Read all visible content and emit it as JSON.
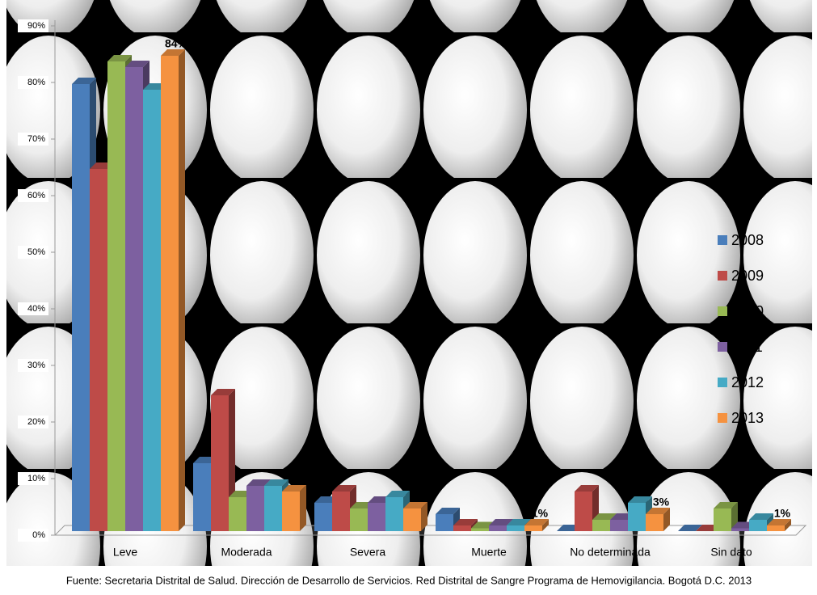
{
  "chart_data": {
    "type": "bar3d",
    "categories": [
      "Leve",
      "Moderada",
      "Severa",
      "Muerte",
      "No determinada",
      "Sin dato"
    ],
    "series": [
      {
        "name": "2008",
        "color": "#4a7ebb",
        "values": [
          79,
          12,
          5,
          3,
          0,
          0
        ]
      },
      {
        "name": "2009",
        "color": "#be4b48",
        "values": [
          64,
          24,
          7,
          1,
          7,
          0
        ]
      },
      {
        "name": "2010",
        "color": "#98b954",
        "values": [
          83,
          6,
          4,
          0.5,
          2,
          4
        ]
      },
      {
        "name": "2011",
        "color": "#7d60a0",
        "values": [
          82,
          8,
          5,
          1,
          2,
          0.5
        ]
      },
      {
        "name": "2012",
        "color": "#46aac5",
        "values": [
          78,
          8,
          6,
          1,
          5,
          2
        ]
      },
      {
        "name": "2013",
        "color": "#f59240",
        "values": [
          84,
          7,
          4,
          1,
          3,
          1
        ],
        "value_labels": [
          "84%",
          null,
          null,
          "1%",
          "3%",
          "1%"
        ]
      }
    ],
    "ylim": [
      0,
      90
    ],
    "yticks": [
      {
        "value": 0,
        "label": "0%"
      },
      {
        "value": 10,
        "label": "10%"
      },
      {
        "value": 20,
        "label": "20%"
      },
      {
        "value": 30,
        "label": "30%"
      },
      {
        "value": 40,
        "label": "40%"
      },
      {
        "value": 50,
        "label": "50%"
      },
      {
        "value": 60,
        "label": "60%"
      },
      {
        "value": 70,
        "label": "70%"
      },
      {
        "value": 80,
        "label": "80%"
      },
      {
        "value": 90,
        "label": "90%"
      }
    ],
    "legend": "right",
    "source": "Fuente: Secretaria Distrital de Salud. Dirección de Desarrollo de Servicios. Red Distrital de Sangre Programa de Hemovigilancia. Bogotá D.C. 2013"
  }
}
